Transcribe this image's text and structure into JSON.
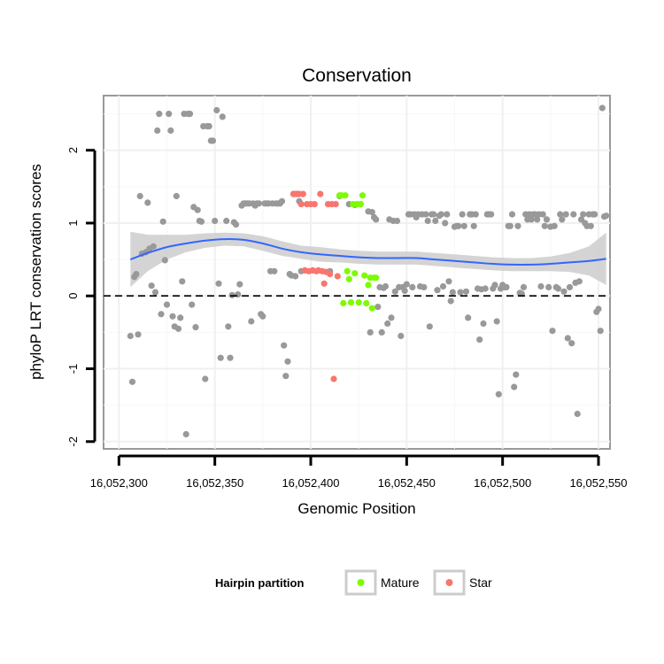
{
  "chart_data": {
    "type": "scatter",
    "title": "Conservation",
    "xlabel": "Genomic Position",
    "ylabel": "phyloP LRT conservation scores",
    "xlim": [
      16052292,
      16052556
    ],
    "ylim": [
      -2.1,
      2.75
    ],
    "x_ticks": [
      16052300,
      16052350,
      16052400,
      16052450,
      16052500,
      16052550
    ],
    "x_tick_labels": [
      "16,052,300",
      "16,052,350",
      "16,052,400",
      "16,052,450",
      "16,052,500",
      "16,052,550"
    ],
    "y_ticks": [
      -2,
      -1,
      0,
      1,
      2
    ],
    "y_tick_labels": [
      "-2",
      "-1",
      "0",
      "1",
      "2"
    ],
    "reference_line": {
      "y": 0,
      "style": "dashed"
    },
    "legend": {
      "title": "Hairpin partition",
      "position": "bottom",
      "entries": [
        {
          "label": "Mature",
          "color": "#7cfc00"
        },
        {
          "label": "Star",
          "color": "#f8766d"
        }
      ]
    },
    "colors": {
      "other": "#999999",
      "Mature": "#7cfc00",
      "Star": "#f8766d",
      "smooth": "#3366ff",
      "ribbon": "#cccccc"
    },
    "series": [
      {
        "name": "Other",
        "points": [
          [
            16052306,
            -0.55
          ],
          [
            16052307,
            -1.18
          ],
          [
            16052308,
            0.26
          ],
          [
            16052309,
            0.3
          ],
          [
            16052310,
            -0.53
          ],
          [
            16052311,
            1.37
          ],
          [
            16052312,
            0.58
          ],
          [
            16052314,
            0.6
          ],
          [
            16052315,
            1.28
          ],
          [
            16052316,
            0.65
          ],
          [
            16052317,
            0.14
          ],
          [
            16052318,
            0.68
          ],
          [
            16052319,
            0.05
          ],
          [
            16052320,
            2.27
          ],
          [
            16052321,
            2.5
          ],
          [
            16052322,
            -0.25
          ],
          [
            16052323,
            1.02
          ],
          [
            16052324,
            0.49
          ],
          [
            16052325,
            -0.12
          ],
          [
            16052326,
            2.5
          ],
          [
            16052327,
            2.27
          ],
          [
            16052328,
            -0.28
          ],
          [
            16052329,
            -0.42
          ],
          [
            16052330,
            1.37
          ],
          [
            16052331,
            -0.45
          ],
          [
            16052332,
            -0.3
          ],
          [
            16052333,
            0.2
          ],
          [
            16052334,
            2.5
          ],
          [
            16052335,
            -1.9
          ],
          [
            16052336,
            2.5
          ],
          [
            16052337,
            2.5
          ],
          [
            16052338,
            -0.12
          ],
          [
            16052339,
            1.22
          ],
          [
            16052340,
            -0.43
          ],
          [
            16052341,
            1.18
          ],
          [
            16052342,
            1.03
          ],
          [
            16052343,
            1.02
          ],
          [
            16052344,
            2.33
          ],
          [
            16052345,
            -1.14
          ],
          [
            16052346,
            2.33
          ],
          [
            16052347,
            2.33
          ],
          [
            16052348,
            2.13
          ],
          [
            16052349,
            2.13
          ],
          [
            16052350,
            1.03
          ],
          [
            16052351,
            2.55
          ],
          [
            16052352,
            0.17
          ],
          [
            16052353,
            -0.85
          ],
          [
            16052354,
            2.46
          ],
          [
            16052356,
            1.03
          ],
          [
            16052357,
            -0.42
          ],
          [
            16052358,
            -0.85
          ],
          [
            16052359,
            0.01
          ],
          [
            16052360,
            1.01
          ],
          [
            16052361,
            0.98
          ],
          [
            16052362,
            0.02
          ],
          [
            16052363,
            0.16
          ],
          [
            16052364,
            1.24
          ],
          [
            16052365,
            1.27
          ],
          [
            16052366,
            1.27
          ],
          [
            16052367,
            1.27
          ],
          [
            16052368,
            1.27
          ],
          [
            16052369,
            -0.35
          ],
          [
            16052370,
            1.27
          ],
          [
            16052371,
            1.24
          ],
          [
            16052372,
            1.27
          ],
          [
            16052373,
            1.27
          ],
          [
            16052374,
            -0.25
          ],
          [
            16052375,
            -0.28
          ],
          [
            16052376,
            1.27
          ],
          [
            16052377,
            1.27
          ],
          [
            16052378,
            1.27
          ],
          [
            16052379,
            0.34
          ],
          [
            16052380,
            1.27
          ],
          [
            16052381,
            0.34
          ],
          [
            16052382,
            1.27
          ],
          [
            16052383,
            1.27
          ],
          [
            16052384,
            1.27
          ],
          [
            16052385,
            1.3
          ],
          [
            16052386,
            -0.68
          ],
          [
            16052387,
            -1.1
          ],
          [
            16052388,
            -0.9
          ],
          [
            16052389,
            0.3
          ],
          [
            16052390,
            0.28
          ],
          [
            16052391,
            1.4
          ],
          [
            16052392,
            0.27
          ],
          [
            16052393,
            1.4
          ],
          [
            16052394,
            1.3
          ],
          [
            16052395,
            0.34
          ],
          [
            16052410,
            0.34
          ],
          [
            16052415,
            1.37
          ],
          [
            16052420,
            1.26
          ],
          [
            16052423,
            1.25
          ],
          [
            16052426,
            1.26
          ],
          [
            16052430,
            1.16
          ],
          [
            16052431,
            -0.5
          ],
          [
            16052432,
            1.15
          ],
          [
            16052433,
            1.08
          ],
          [
            16052434,
            1.05
          ],
          [
            16052435,
            -0.15
          ],
          [
            16052436,
            0.12
          ],
          [
            16052437,
            -0.5
          ],
          [
            16052438,
            0.11
          ],
          [
            16052439,
            0.13
          ],
          [
            16052440,
            -0.38
          ],
          [
            16052441,
            1.05
          ],
          [
            16052442,
            -0.3
          ],
          [
            16052443,
            1.03
          ],
          [
            16052444,
            0.06
          ],
          [
            16052445,
            1.03
          ],
          [
            16052446,
            0.12
          ],
          [
            16052447,
            -0.55
          ],
          [
            16052448,
            0.12
          ],
          [
            16052449,
            0.07
          ],
          [
            16052450,
            0.16
          ],
          [
            16052451,
            1.12
          ],
          [
            16052452,
            1.12
          ],
          [
            16052453,
            0.12
          ],
          [
            16052454,
            1.12
          ],
          [
            16052455,
            1.08
          ],
          [
            16052456,
            1.12
          ],
          [
            16052457,
            0.13
          ],
          [
            16052458,
            1.12
          ],
          [
            16052459,
            0.12
          ],
          [
            16052460,
            1.12
          ],
          [
            16052461,
            1.03
          ],
          [
            16052462,
            -0.42
          ],
          [
            16052463,
            1.12
          ],
          [
            16052464,
            1.12
          ],
          [
            16052465,
            1.03
          ],
          [
            16052466,
            0.08
          ],
          [
            16052467,
            1.1
          ],
          [
            16052468,
            1.12
          ],
          [
            16052469,
            0.13
          ],
          [
            16052470,
            1.0
          ],
          [
            16052471,
            1.12
          ],
          [
            16052472,
            0.2
          ],
          [
            16052473,
            -0.07
          ],
          [
            16052474,
            0.05
          ],
          [
            16052475,
            0.95
          ],
          [
            16052476,
            0.96
          ],
          [
            16052477,
            0.96
          ],
          [
            16052478,
            0.05
          ],
          [
            16052479,
            1.12
          ],
          [
            16052480,
            0.96
          ],
          [
            16052481,
            0.06
          ],
          [
            16052482,
            -0.3
          ],
          [
            16052483,
            1.12
          ],
          [
            16052484,
            1.12
          ],
          [
            16052485,
            0.96
          ],
          [
            16052486,
            1.12
          ],
          [
            16052487,
            0.1
          ],
          [
            16052488,
            -0.6
          ],
          [
            16052489,
            0.09
          ],
          [
            16052490,
            -0.38
          ],
          [
            16052491,
            0.1
          ],
          [
            16052492,
            1.12
          ],
          [
            16052493,
            1.12
          ],
          [
            16052494,
            1.12
          ],
          [
            16052495,
            0.1
          ],
          [
            16052496,
            0.15
          ],
          [
            16052497,
            -0.35
          ],
          [
            16052498,
            -1.35
          ],
          [
            16052499,
            0.1
          ],
          [
            16052500,
            0.15
          ],
          [
            16052501,
            0.12
          ],
          [
            16052502,
            0.12
          ],
          [
            16052503,
            0.96
          ],
          [
            16052504,
            0.96
          ],
          [
            16052505,
            1.12
          ],
          [
            16052506,
            -1.25
          ],
          [
            16052507,
            -1.08
          ],
          [
            16052508,
            0.96
          ],
          [
            16052509,
            0.04
          ],
          [
            16052510,
            0.03
          ],
          [
            16052511,
            0.12
          ],
          [
            16052512,
            1.12
          ],
          [
            16052513,
            1.05
          ],
          [
            16052514,
            1.12
          ],
          [
            16052515,
            1.05
          ],
          [
            16052516,
            1.12
          ],
          [
            16052517,
            1.12
          ],
          [
            16052518,
            1.05
          ],
          [
            16052519,
            1.12
          ],
          [
            16052520,
            0.13
          ],
          [
            16052521,
            1.12
          ],
          [
            16052522,
            0.96
          ],
          [
            16052523,
            1.05
          ],
          [
            16052524,
            0.12
          ],
          [
            16052525,
            0.95
          ],
          [
            16052526,
            -0.48
          ],
          [
            16052527,
            0.96
          ],
          [
            16052528,
            0.12
          ],
          [
            16052529,
            0.1
          ],
          [
            16052530,
            1.12
          ],
          [
            16052531,
            1.05
          ],
          [
            16052532,
            0.06
          ],
          [
            16052533,
            1.12
          ],
          [
            16052534,
            -0.58
          ],
          [
            16052535,
            0.12
          ],
          [
            16052536,
            -0.65
          ],
          [
            16052537,
            1.12
          ],
          [
            16052538,
            0.18
          ],
          [
            16052539,
            -1.62
          ],
          [
            16052540,
            0.2
          ],
          [
            16052541,
            1.05
          ],
          [
            16052542,
            1.12
          ],
          [
            16052543,
            1.0
          ],
          [
            16052544,
            0.96
          ],
          [
            16052545,
            1.12
          ],
          [
            16052546,
            0.96
          ],
          [
            16052547,
            1.12
          ],
          [
            16052548,
            1.12
          ],
          [
            16052549,
            -0.22
          ],
          [
            16052550,
            -0.18
          ],
          [
            16052551,
            -0.48
          ],
          [
            16052552,
            2.58
          ],
          [
            16052553,
            1.09
          ],
          [
            16052554,
            1.1
          ]
        ]
      },
      {
        "name": "Star",
        "points": [
          [
            16052391,
            1.4
          ],
          [
            16052392,
            1.4
          ],
          [
            16052393,
            1.4
          ],
          [
            16052394,
            1.4
          ],
          [
            16052395,
            1.26
          ],
          [
            16052396,
            1.4
          ],
          [
            16052397,
            0.35
          ],
          [
            16052398,
            1.26
          ],
          [
            16052399,
            0.34
          ],
          [
            16052400,
            1.26
          ],
          [
            16052401,
            0.35
          ],
          [
            16052402,
            1.26
          ],
          [
            16052403,
            0.34
          ],
          [
            16052404,
            0.35
          ],
          [
            16052405,
            1.4
          ],
          [
            16052406,
            0.34
          ],
          [
            16052407,
            0.17
          ],
          [
            16052408,
            0.33
          ],
          [
            16052409,
            1.26
          ],
          [
            16052410,
            0.3
          ],
          [
            16052411,
            1.26
          ],
          [
            16052412,
            -1.14
          ],
          [
            16052413,
            1.26
          ],
          [
            16052414,
            0.27
          ]
        ]
      },
      {
        "name": "Mature",
        "points": [
          [
            16052415,
            1.38
          ],
          [
            16052416,
            1.38
          ],
          [
            16052417,
            -0.1
          ],
          [
            16052418,
            1.38
          ],
          [
            16052419,
            0.34
          ],
          [
            16052420,
            0.23
          ],
          [
            16052421,
            -0.09
          ],
          [
            16052422,
            1.26
          ],
          [
            16052423,
            0.31
          ],
          [
            16052424,
            1.26
          ],
          [
            16052425,
            -0.09
          ],
          [
            16052426,
            1.26
          ],
          [
            16052427,
            1.38
          ],
          [
            16052428,
            0.28
          ],
          [
            16052429,
            -0.1
          ],
          [
            16052430,
            0.15
          ],
          [
            16052431,
            0.25
          ],
          [
            16052432,
            -0.17
          ],
          [
            16052433,
            0.25
          ],
          [
            16052434,
            0.25
          ]
        ]
      }
    ],
    "smooth_fit": {
      "x": [
        16052306,
        16052315,
        16052325,
        16052335,
        16052345,
        16052355,
        16052365,
        16052375,
        16052385,
        16052395,
        16052405,
        16052415,
        16052425,
        16052435,
        16052445,
        16052455,
        16052465,
        16052475,
        16052485,
        16052495,
        16052505,
        16052515,
        16052525,
        16052535,
        16052545,
        16052554
      ],
      "y": [
        0.5,
        0.59,
        0.67,
        0.72,
        0.76,
        0.78,
        0.77,
        0.72,
        0.65,
        0.6,
        0.57,
        0.55,
        0.53,
        0.52,
        0.52,
        0.52,
        0.5,
        0.48,
        0.46,
        0.44,
        0.43,
        0.43,
        0.44,
        0.46,
        0.48,
        0.51
      ],
      "lower": [
        0.12,
        0.34,
        0.5,
        0.6,
        0.66,
        0.69,
        0.68,
        0.62,
        0.55,
        0.51,
        0.47,
        0.46,
        0.44,
        0.43,
        0.43,
        0.43,
        0.41,
        0.39,
        0.37,
        0.35,
        0.34,
        0.34,
        0.34,
        0.33,
        0.28,
        0.15
      ],
      "upper": [
        0.88,
        0.84,
        0.84,
        0.84,
        0.86,
        0.87,
        0.86,
        0.82,
        0.75,
        0.69,
        0.67,
        0.64,
        0.62,
        0.61,
        0.61,
        0.61,
        0.59,
        0.57,
        0.55,
        0.53,
        0.52,
        0.52,
        0.54,
        0.59,
        0.68,
        0.87
      ]
    }
  }
}
